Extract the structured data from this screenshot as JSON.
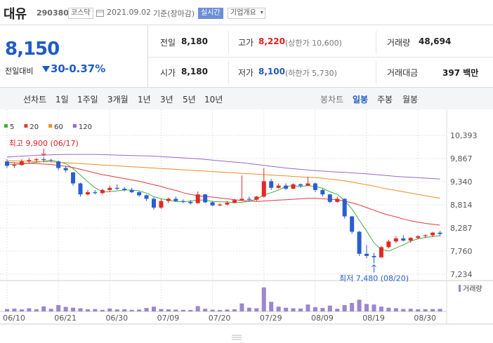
{
  "header": {
    "name": "대유",
    "code": "290380",
    "market": "코스닥",
    "date": "2021.09.02",
    "basis": "기준(장마감)",
    "realtime": "실시간",
    "company_info": "기업개요"
  },
  "price": {
    "current": "8,150",
    "change_label": "전일대비",
    "change": "30",
    "change_rate": "-0.37%"
  },
  "summary": {
    "rows": [
      [
        {
          "label": "전일",
          "value": "8,180"
        },
        {
          "label": "고가",
          "value": "8,220",
          "note": "(상한가 10,600)"
        },
        {
          "label": "거래량",
          "value": "48,694"
        }
      ],
      [
        {
          "label": "시가",
          "value": "8,180"
        },
        {
          "label": "저가",
          "value": "8,100",
          "note": "(하한가 5,730)"
        },
        {
          "label": "거래대금",
          "value": "397 백만"
        }
      ]
    ]
  },
  "tabs": {
    "line_chart": "선차트",
    "periods": [
      "1일",
      "1주일",
      "3개월",
      "1년",
      "3년",
      "5년",
      "10년"
    ],
    "candle_chart": "봉차트",
    "candle_periods": [
      "일봉",
      "주봉",
      "월봉"
    ]
  },
  "chart_data": {
    "type": "candlestick",
    "categories": [
      "06/10",
      null,
      null,
      null,
      null,
      null,
      null,
      "06/21",
      null,
      null,
      null,
      null,
      null,
      null,
      "06/30",
      null,
      null,
      null,
      null,
      null,
      null,
      "07/09",
      null,
      null,
      null,
      null,
      null,
      null,
      "07/20",
      null,
      null,
      null,
      null,
      null,
      null,
      "07/29",
      null,
      null,
      null,
      null,
      null,
      null,
      "08/09",
      null,
      null,
      null,
      null,
      null,
      null,
      "08/19",
      null,
      null,
      null,
      null,
      null,
      null,
      "08/30",
      null,
      null,
      null
    ],
    "open": [
      9800,
      9700,
      9720,
      9800,
      9830,
      9850,
      9830,
      9800,
      9650,
      9550,
      9300,
      9050,
      9100,
      9080,
      9150,
      9200,
      9180,
      9150,
      9100,
      9030,
      8950,
      8750,
      8900,
      8950,
      8900,
      8880,
      8850,
      9050,
      8870,
      8800,
      8820,
      8860,
      8920,
      8950,
      8930,
      9000,
      9350,
      9200,
      9250,
      9180,
      9280,
      9250,
      9300,
      9150,
      9050,
      8880,
      8950,
      8550,
      8200,
      7700,
      7650,
      7620,
      7850,
      7980,
      8050,
      8000,
      8060,
      8100,
      8120,
      8180
    ],
    "high": [
      9850,
      9780,
      9850,
      9880,
      9880,
      9900,
      9860,
      9820,
      9700,
      9560,
      9320,
      9150,
      9150,
      9180,
      9250,
      9280,
      9220,
      9200,
      9120,
      9050,
      8980,
      8950,
      8980,
      9000,
      8940,
      8920,
      9120,
      9060,
      8900,
      8850,
      8900,
      8950,
      9480,
      9000,
      9020,
      9650,
      9400,
      9300,
      9300,
      9300,
      9300,
      9450,
      9320,
      9180,
      9060,
      9000,
      8960,
      8560,
      8220,
      7900,
      7720,
      7880,
      8020,
      8100,
      8120,
      8080,
      8120,
      8140,
      8200,
      8220
    ],
    "low": [
      9650,
      9650,
      9700,
      9750,
      9780,
      9780,
      9780,
      9600,
      9550,
      9250,
      9000,
      9020,
      9050,
      9050,
      9100,
      9150,
      9120,
      9080,
      9000,
      8900,
      8700,
      8720,
      8850,
      8880,
      8850,
      8820,
      8840,
      8850,
      8780,
      8780,
      8800,
      8850,
      8900,
      8880,
      8900,
      8980,
      9150,
      9180,
      9150,
      9170,
      9200,
      9240,
      9100,
      9000,
      8850,
      8860,
      8500,
      8150,
      7650,
      7600,
      7480,
      7600,
      7820,
      7940,
      7980,
      7950,
      8030,
      8060,
      8080,
      8100
    ],
    "close": [
      9700,
      9720,
      9800,
      9830,
      9850,
      9830,
      9820,
      9650,
      9600,
      9300,
      9050,
      9100,
      9080,
      9150,
      9200,
      9180,
      9150,
      9100,
      9030,
      8950,
      8750,
      8900,
      8950,
      8900,
      8880,
      8850,
      9050,
      8870,
      8800,
      8820,
      8860,
      8920,
      8950,
      8930,
      9000,
      9350,
      9200,
      9250,
      9180,
      9280,
      9250,
      9300,
      9150,
      9050,
      8880,
      8950,
      8550,
      8200,
      7700,
      7650,
      7620,
      7850,
      7980,
      8050,
      8000,
      8060,
      8100,
      8120,
      8180,
      8150
    ],
    "volume": [
      45000,
      52000,
      38000,
      60000,
      42000,
      95000,
      50000,
      120000,
      85000,
      70000,
      60000,
      40000,
      45000,
      30000,
      55000,
      38000,
      42000,
      30000,
      35000,
      65000,
      90000,
      45000,
      40000,
      35000,
      30000,
      28000,
      100000,
      50000,
      32000,
      28000,
      35000,
      40000,
      150000,
      70000,
      60000,
      450000,
      180000,
      90000,
      70000,
      60000,
      55000,
      130000,
      80000,
      65000,
      110000,
      50000,
      120000,
      160000,
      220000,
      140000,
      130000,
      90000,
      70000,
      60000,
      45000,
      50000,
      40000,
      42000,
      45000,
      48694
    ],
    "up_color": "#e22926",
    "down_color": "#2a5ecf",
    "volume_color": "#9b86cf",
    "volume_label": "거래량",
    "volume_lim": [
      0,
      500000
    ],
    "max_label": "최고 9,900 (06/17)",
    "min_label": "최저 7,480 (08/20)",
    "series": [
      {
        "name": "5",
        "color": "#3cb043",
        "values": [
          9740,
          9730,
          9740,
          9760,
          9780,
          9800,
          9830,
          9790,
          9750,
          9640,
          9490,
          9340,
          9200,
          9110,
          9110,
          9130,
          9150,
          9150,
          9130,
          9080,
          9000,
          8950,
          8920,
          8890,
          8880,
          8900,
          8920,
          8920,
          8890,
          8880,
          8880,
          8860,
          8870,
          8900,
          8940,
          9040,
          9090,
          9150,
          9230,
          9250,
          9230,
          9250,
          9230,
          9190,
          9110,
          9050,
          8910,
          8720,
          8460,
          8220,
          7950,
          7800,
          7760,
          7830,
          7900,
          7990,
          8040,
          8070,
          8090,
          8110
        ]
      },
      {
        "name": "20",
        "color": "#e03a3a",
        "values": [
          9780,
          9770,
          9760,
          9760,
          9750,
          9740,
          9730,
          9710,
          9690,
          9660,
          9620,
          9580,
          9540,
          9500,
          9470,
          9440,
          9410,
          9380,
          9350,
          9310,
          9270,
          9230,
          9180,
          9140,
          9090,
          9050,
          9020,
          9000,
          8990,
          8970,
          8950,
          8930,
          8910,
          8900,
          8890,
          8900,
          8910,
          8920,
          8930,
          8940,
          8950,
          8960,
          8960,
          8950,
          8940,
          8930,
          8900,
          8860,
          8810,
          8750,
          8690,
          8630,
          8580,
          8540,
          8490,
          8450,
          8420,
          8390,
          8370,
          8350
        ]
      },
      {
        "name": "60",
        "color": "#f08c1e",
        "values": [
          9820,
          9815,
          9810,
          9805,
          9800,
          9795,
          9790,
          9780,
          9770,
          9760,
          9750,
          9740,
          9730,
          9720,
          9710,
          9700,
          9690,
          9680,
          9670,
          9660,
          9650,
          9640,
          9630,
          9620,
          9610,
          9600,
          9590,
          9580,
          9570,
          9560,
          9550,
          9540,
          9530,
          9520,
          9510,
          9500,
          9490,
          9480,
          9470,
          9460,
          9450,
          9440,
          9430,
          9420,
          9400,
          9380,
          9360,
          9330,
          9300,
          9270,
          9240,
          9200,
          9170,
          9140,
          9110,
          9080,
          9050,
          9020,
          8990,
          8960
        ]
      },
      {
        "name": "120",
        "color": "#9966cc",
        "values": [
          9900,
          9910,
          9920,
          9930,
          9940,
          9945,
          9950,
          9955,
          9960,
          9960,
          9960,
          9960,
          9960,
          9955,
          9950,
          9945,
          9940,
          9935,
          9930,
          9925,
          9920,
          9910,
          9900,
          9890,
          9880,
          9870,
          9860,
          9845,
          9830,
          9815,
          9800,
          9785,
          9770,
          9750,
          9730,
          9710,
          9690,
          9670,
          9650,
          9635,
          9620,
          9605,
          9590,
          9580,
          9570,
          9560,
          9550,
          9540,
          9530,
          9520,
          9505,
          9490,
          9475,
          9460,
          9450,
          9440,
          9430,
          9420,
          9410,
          9400
        ]
      }
    ],
    "ylim": [
      7090,
      10728
    ],
    "yticks": [
      {
        "value": 7234,
        "label": "7,234"
      },
      {
        "value": 7760,
        "label": "7,760"
      },
      {
        "value": 8287,
        "label": "8,287"
      },
      {
        "value": 8814,
        "label": "8,814"
      },
      {
        "value": 9340,
        "label": "9,340"
      },
      {
        "value": 9867,
        "label": "9,867"
      },
      {
        "value": 10393,
        "label": "10,393"
      }
    ],
    "grid": true
  }
}
